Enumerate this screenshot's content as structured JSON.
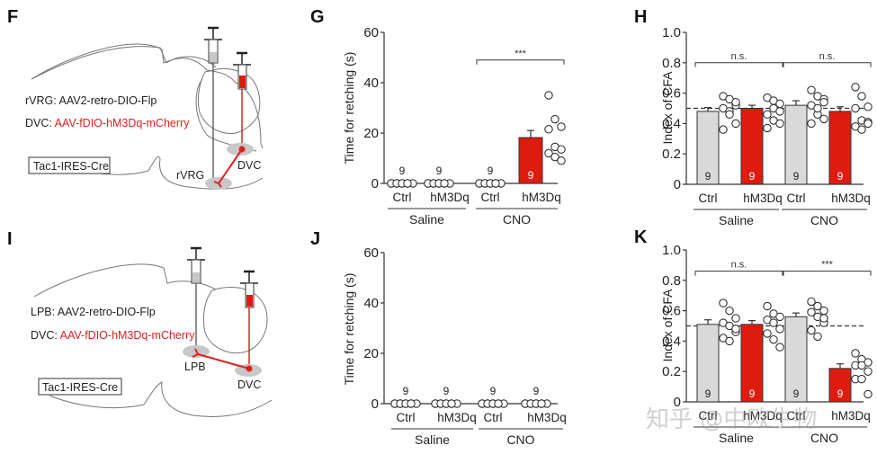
{
  "colors": {
    "ctrl_bar": "#d9d9d9",
    "hm3dq_bar": "#dd1c0f",
    "axis": "#333333",
    "schematic_red": "#e02020",
    "region_gray": "#c8c8c8"
  },
  "schematics": [
    {
      "panel": "F",
      "line1": "rVRG: AAV2-retro-DIO-Flp",
      "line2_prefix": "DVC: ",
      "line2_red": "AAV-fDIO-hM3Dq-mCherry",
      "mouse_line": "Tac1-IRES-Cre",
      "region_a": "rVRG",
      "region_b": "DVC"
    },
    {
      "panel": "I",
      "line1": "LPB: AAV2-retro-DIO-Flp",
      "line2_prefix": "DVC: ",
      "line2_red": "AAV-fDIO-hM3Dq-mCherry",
      "mouse_line": "Tac1-IRES-Cre",
      "region_a": "LPB",
      "region_b": "DVC"
    }
  ],
  "watermark": "知乎 @中欧生物",
  "chart_data": [
    {
      "panel": "G",
      "type": "bar",
      "ylabel": "Time for retching (s)",
      "ylim": [
        0,
        60
      ],
      "yticks": [
        0,
        20,
        40,
        60
      ],
      "categories": [
        "Ctrl",
        "hM3Dq",
        "Ctrl",
        "hM3Dq"
      ],
      "groups": [
        "Saline",
        "CNO"
      ],
      "bar_colors": [
        "ctrl",
        "hm3dq",
        "ctrl",
        "hm3dq"
      ],
      "means": [
        0,
        0,
        0,
        18.2
      ],
      "sem": [
        0,
        0,
        0,
        2.8
      ],
      "n": [
        9,
        9,
        9,
        9
      ],
      "points": [
        [
          0,
          0,
          0,
          0,
          0,
          0,
          0,
          0,
          0
        ],
        [
          0,
          0,
          0,
          0,
          0,
          0,
          0,
          0,
          0
        ],
        [
          0,
          0,
          0,
          0,
          0,
          0,
          0,
          0,
          0
        ],
        [
          35,
          25.5,
          22.5,
          21.5,
          14.5,
          13.5,
          12,
          10.5,
          9
        ]
      ],
      "reference_line": null,
      "significance": [
        {
          "from": 2,
          "to": 3,
          "label": "***",
          "y": 49
        }
      ]
    },
    {
      "panel": "H",
      "type": "bar",
      "ylabel": "Index of CFA",
      "ylim": [
        0,
        1.0
      ],
      "yticks": [
        0,
        0.2,
        0.4,
        0.6,
        0.8,
        1.0
      ],
      "ytick_labels": [
        "0",
        "0.2",
        "0.4",
        "0.6",
        "0.8",
        "1.0"
      ],
      "categories": [
        "Ctrl",
        "hM3Dq",
        "Ctrl",
        "hM3Dq"
      ],
      "groups": [
        "Saline",
        "CNO"
      ],
      "bar_colors": [
        "ctrl",
        "hm3dq",
        "ctrl",
        "hm3dq"
      ],
      "means": [
        0.48,
        0.5,
        0.52,
        0.48
      ],
      "sem": [
        0.025,
        0.02,
        0.03,
        0.03
      ],
      "n": [
        9,
        9,
        9,
        9
      ],
      "points": [
        [
          0.58,
          0.56,
          0.52,
          0.5,
          0.48,
          0.4,
          0.36,
          0.46,
          0.54
        ],
        [
          0.57,
          0.55,
          0.53,
          0.46,
          0.42,
          0.4,
          0.37,
          0.5,
          0.48
        ],
        [
          0.62,
          0.58,
          0.56,
          0.52,
          0.46,
          0.43,
          0.4,
          0.5,
          0.54
        ],
        [
          0.64,
          0.58,
          0.51,
          0.5,
          0.42,
          0.41,
          0.38,
          0.36,
          0.4
        ]
      ],
      "reference_line": 0.5,
      "significance": [
        {
          "from": 0,
          "to": 1,
          "label": "n.s.",
          "y": 0.8
        },
        {
          "from": 2,
          "to": 3,
          "label": "n.s.",
          "y": 0.8
        }
      ]
    },
    {
      "panel": "J",
      "type": "bar",
      "ylabel": "Time for retching (s)",
      "ylim": [
        0,
        60
      ],
      "yticks": [
        0,
        20,
        40,
        60
      ],
      "categories": [
        "Ctrl",
        "hM3Dq",
        "Ctrl",
        "hM3Dq"
      ],
      "groups": [
        "Saline",
        "CNO"
      ],
      "bar_colors": [
        "ctrl",
        "hm3dq",
        "ctrl",
        "hm3dq"
      ],
      "means": [
        0,
        0,
        0,
        0
      ],
      "sem": [
        0,
        0,
        0,
        0
      ],
      "n": [
        9,
        9,
        9,
        9
      ],
      "points": [
        [
          0,
          0,
          0,
          0,
          0,
          0,
          0,
          0,
          0
        ],
        [
          0,
          0,
          0,
          0,
          0,
          0,
          0,
          0,
          0
        ],
        [
          0,
          0,
          0,
          0,
          0,
          0,
          0,
          0,
          0
        ],
        [
          0,
          0,
          0,
          0,
          0,
          0,
          0,
          0,
          0
        ]
      ],
      "reference_line": null,
      "significance": []
    },
    {
      "panel": "K",
      "type": "bar",
      "ylabel": "Index of CFA",
      "ylim": [
        0,
        1.0
      ],
      "yticks": [
        0,
        0.2,
        0.4,
        0.6,
        0.8,
        1.0
      ],
      "ytick_labels": [
        "0",
        "0.2",
        "0.4",
        "0.6",
        "0.8",
        "1.0"
      ],
      "categories": [
        "Ctrl",
        "hM3Dq",
        "Ctrl",
        "hM3Dq"
      ],
      "groups": [
        "Saline",
        "CNO"
      ],
      "bar_colors": [
        "ctrl",
        "hm3dq",
        "ctrl",
        "hm3dq"
      ],
      "means": [
        0.51,
        0.51,
        0.56,
        0.22
      ],
      "sem": [
        0.03,
        0.025,
        0.025,
        0.03
      ],
      "n": [
        9,
        9,
        9,
        9
      ],
      "points": [
        [
          0.65,
          0.6,
          0.55,
          0.52,
          0.5,
          0.46,
          0.42,
          0.4,
          0.48
        ],
        [
          0.63,
          0.58,
          0.56,
          0.54,
          0.52,
          0.48,
          0.45,
          0.41,
          0.36
        ],
        [
          0.66,
          0.63,
          0.6,
          0.59,
          0.56,
          0.52,
          0.47,
          0.43,
          0.55
        ],
        [
          0.32,
          0.28,
          0.26,
          0.24,
          0.24,
          0.2,
          0.15,
          0.15,
          0.05
        ]
      ],
      "reference_line": 0.5,
      "significance": [
        {
          "from": 0,
          "to": 1,
          "label": "n.s.",
          "y": 0.86
        },
        {
          "from": 2,
          "to": 3,
          "label": "***",
          "y": 0.86
        }
      ]
    }
  ]
}
